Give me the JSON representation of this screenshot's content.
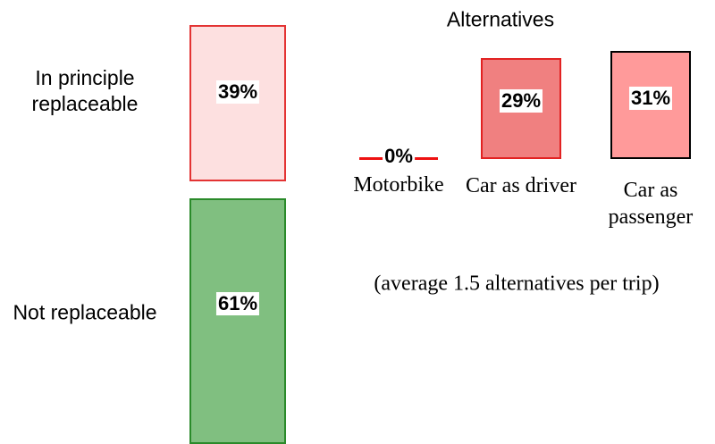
{
  "chart_data": [
    {
      "type": "stacked-column",
      "categories": [
        "In principle replaceable",
        "Not replaceable"
      ],
      "values": [
        39,
        61
      ],
      "value_labels": [
        "39%",
        "61%"
      ],
      "colors": [
        "#fde0e0",
        "#80bf80"
      ],
      "border_colors": [
        "#e33333",
        "#2a8a2a"
      ]
    },
    {
      "type": "bar",
      "title": "Alternatives",
      "categories": [
        "Motorbike",
        "Car as driver",
        "Car as passenger"
      ],
      "values": [
        0,
        29,
        31
      ],
      "value_labels": [
        "0%",
        "29%",
        "31%"
      ],
      "colors": [
        "#ee1111",
        "#f08080",
        "#ff9a9a"
      ],
      "border_colors": [
        "#ee1111",
        "#e22222",
        "#000000"
      ],
      "note": "(average 1.5 alternatives per trip)"
    }
  ]
}
